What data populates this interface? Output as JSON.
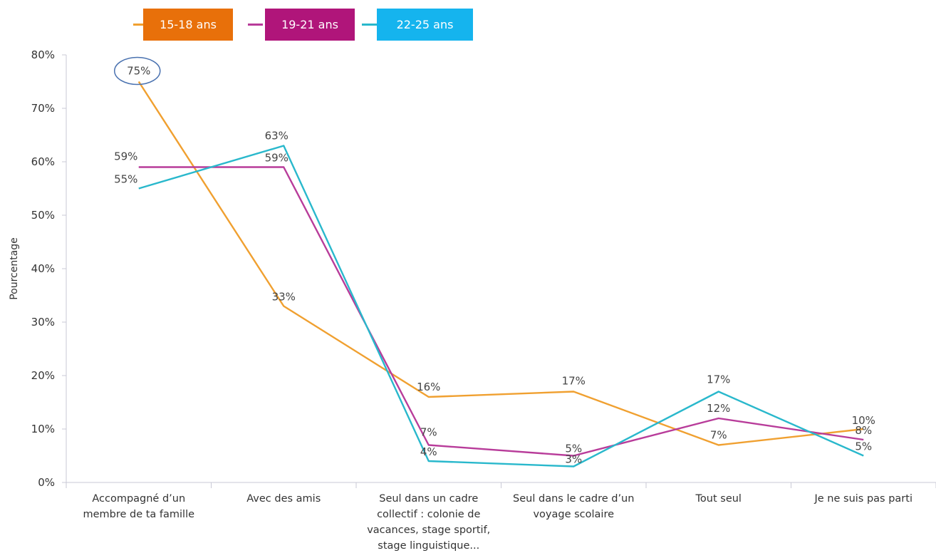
{
  "chart_data": {
    "type": "line",
    "ylabel": "Pourcentage",
    "xlabel": "",
    "ylim": [
      0,
      80
    ],
    "yticks": [
      "0%",
      "10%",
      "20%",
      "30%",
      "40%",
      "50%",
      "60%",
      "70%",
      "80%"
    ],
    "categories": [
      [
        "Accompagné d’un",
        "membre de ta famille"
      ],
      [
        "Avec des amis"
      ],
      [
        "Seul dans un cadre",
        "collectif : colonie de",
        "vacances, stage sportif,",
        "stage linguistique..."
      ],
      [
        "Seul dans le cadre d’un",
        "voyage scolaire"
      ],
      [
        "Tout seul"
      ],
      [
        "Je ne suis pas parti"
      ]
    ],
    "series": [
      {
        "name": "15-18 ans",
        "color": "#f0a030",
        "legend_color": "#e8700a",
        "values": [
          75,
          33,
          16,
          17,
          7,
          10
        ],
        "labels": [
          "75%",
          "33%",
          "16%",
          "17%",
          "7%",
          "10%"
        ]
      },
      {
        "name": "19-21 ans",
        "color": "#b83c9a",
        "legend_color": "#b0157a",
        "values": [
          59,
          59,
          7,
          5,
          12,
          8
        ],
        "labels": [
          "59%",
          "59%",
          "7%",
          "5%",
          "12%",
          "8%"
        ]
      },
      {
        "name": "22-25 ans",
        "color": "#29b8cc",
        "legend_color": "#15b4ee",
        "values": [
          55,
          63,
          4,
          3,
          17,
          5
        ],
        "labels": [
          "55%",
          "63%",
          "4%",
          "3%",
          "17%",
          "5%"
        ]
      }
    ],
    "highlight": {
      "series": 0,
      "point": 0
    },
    "grid": false,
    "legend_position": "top-left"
  }
}
